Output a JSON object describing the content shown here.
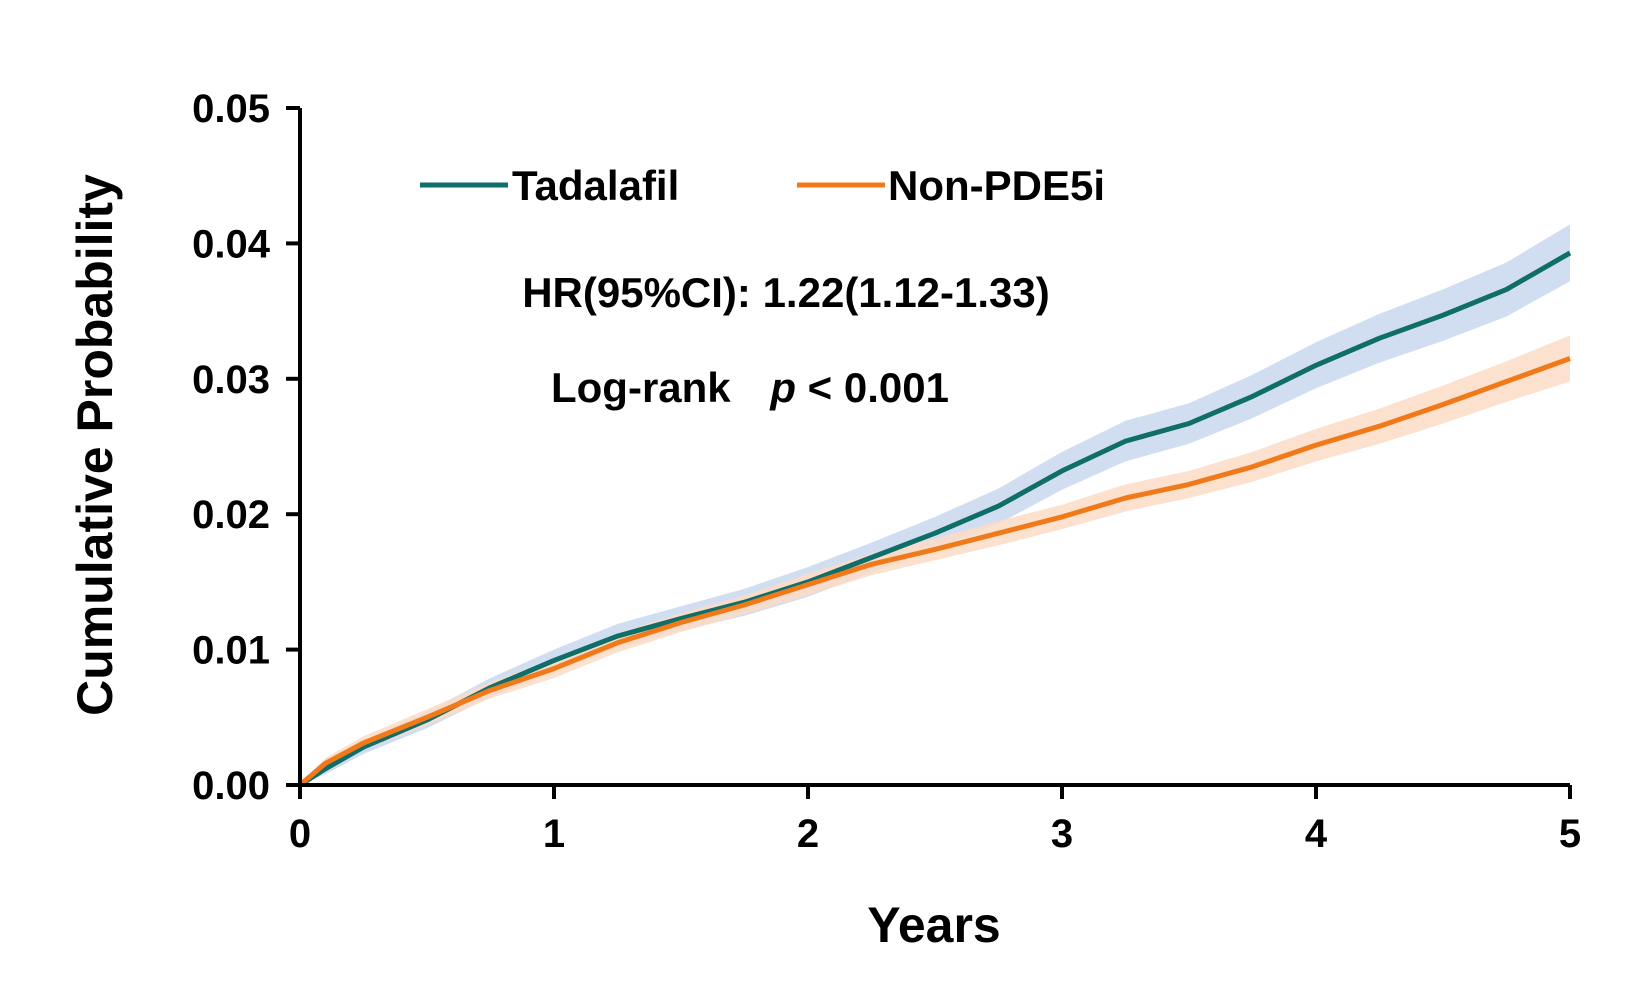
{
  "chart_data": {
    "type": "line",
    "xlabel": "Years",
    "ylabel": "Cumulative Probability",
    "xlim": [
      0,
      5
    ],
    "ylim": [
      0,
      0.05
    ],
    "xticks": [
      "0",
      "1",
      "2",
      "3",
      "4",
      "5"
    ],
    "yticks": [
      "0.00",
      "0.01",
      "0.02",
      "0.03",
      "0.04",
      "0.05"
    ],
    "grid": false,
    "legend_position": "top-left",
    "annotations": {
      "hr": "HR(95%CI): 1.22(1.12-1.33)",
      "logrank_prefix": "Log-rank",
      "logrank_p": "p",
      "logrank_suffix": " < 0.001"
    },
    "series": [
      {
        "name": "Tadalafil",
        "color": "#0f6e68",
        "band_color": "#c9d8ee",
        "x": [
          0,
          0.1,
          0.25,
          0.5,
          0.75,
          1.0,
          1.25,
          1.5,
          1.75,
          2.0,
          2.25,
          2.5,
          2.75,
          3.0,
          3.25,
          3.5,
          3.75,
          4.0,
          4.25,
          4.5,
          4.75,
          5.0
        ],
        "y": [
          0,
          0.0012,
          0.0028,
          0.0048,
          0.0072,
          0.0092,
          0.011,
          0.0123,
          0.0135,
          0.015,
          0.0168,
          0.0186,
          0.0206,
          0.0232,
          0.0254,
          0.0267,
          0.0287,
          0.031,
          0.033,
          0.0347,
          0.0366,
          0.0393
        ],
        "lower": [
          0,
          0.0008,
          0.0023,
          0.0042,
          0.0065,
          0.0084,
          0.0101,
          0.0114,
          0.0125,
          0.0139,
          0.0157,
          0.0174,
          0.0193,
          0.0218,
          0.0239,
          0.0252,
          0.0271,
          0.0293,
          0.0312,
          0.0328,
          0.0346,
          0.0372
        ],
        "upper": [
          0,
          0.0016,
          0.0033,
          0.0054,
          0.0079,
          0.01,
          0.0119,
          0.0132,
          0.0145,
          0.0161,
          0.0179,
          0.0198,
          0.0219,
          0.0246,
          0.0269,
          0.0282,
          0.0303,
          0.0327,
          0.0348,
          0.0366,
          0.0386,
          0.0414
        ]
      },
      {
        "name": "Non-PDE5i",
        "color": "#f07a1a",
        "band_color": "#fbdcc6",
        "x": [
          0,
          0.1,
          0.25,
          0.5,
          0.75,
          1.0,
          1.25,
          1.5,
          1.75,
          2.0,
          2.25,
          2.5,
          2.75,
          3.0,
          3.25,
          3.5,
          3.75,
          4.0,
          4.25,
          4.5,
          4.75,
          5.0
        ],
        "y": [
          0,
          0.0016,
          0.0031,
          0.005,
          0.007,
          0.0086,
          0.0105,
          0.012,
          0.0133,
          0.0148,
          0.0163,
          0.0174,
          0.0186,
          0.0198,
          0.0212,
          0.0222,
          0.0235,
          0.0251,
          0.0265,
          0.0281,
          0.0298,
          0.0315
        ],
        "lower": [
          0,
          0.0012,
          0.0026,
          0.0044,
          0.0064,
          0.0079,
          0.0098,
          0.0113,
          0.0126,
          0.014,
          0.0155,
          0.0166,
          0.0177,
          0.0189,
          0.0202,
          0.0212,
          0.0224,
          0.0239,
          0.0252,
          0.0267,
          0.0283,
          0.0298
        ],
        "upper": [
          0,
          0.002,
          0.0036,
          0.0056,
          0.0076,
          0.0093,
          0.0112,
          0.0127,
          0.014,
          0.0156,
          0.0171,
          0.0182,
          0.0195,
          0.0207,
          0.0222,
          0.0232,
          0.0246,
          0.0263,
          0.0278,
          0.0295,
          0.0313,
          0.0332
        ]
      }
    ]
  }
}
